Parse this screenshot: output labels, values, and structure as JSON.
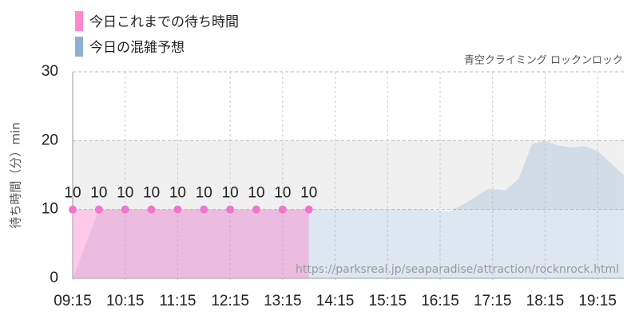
{
  "chart_data": {
    "type": "area",
    "subtitle": "青空クライミング ロックンロック",
    "y_label": "待ち時間（分）min",
    "watermark": "https://parksreal.jp/seaparadise/attraction/rocknrock.html",
    "xlim": [
      555,
      1185
    ],
    "xticks": [
      {
        "value": 555,
        "label": "09:15"
      },
      {
        "value": 615,
        "label": "10:15"
      },
      {
        "value": 675,
        "label": "11:15"
      },
      {
        "value": 735,
        "label": "12:15"
      },
      {
        "value": 795,
        "label": "13:15"
      },
      {
        "value": 855,
        "label": "14:15"
      },
      {
        "value": 915,
        "label": "15:15"
      },
      {
        "value": 975,
        "label": "16:15"
      },
      {
        "value": 1035,
        "label": "17:15"
      },
      {
        "value": 1095,
        "label": "18:15"
      },
      {
        "value": 1155,
        "label": "19:15"
      }
    ],
    "ylim": [
      0,
      30
    ],
    "yticks": [
      0,
      10,
      20,
      30
    ],
    "shaded_band": [
      10,
      20
    ],
    "grid": true,
    "series": [
      {
        "name": "今日これまでの待ち時間",
        "color": "#ff88cc",
        "labels": true,
        "x": [
          555,
          585,
          615,
          645,
          675,
          705,
          735,
          765,
          795,
          825
        ],
        "values": [
          10,
          10,
          10,
          10,
          10,
          10,
          10,
          10,
          10,
          10
        ]
      },
      {
        "name": "今日の混雑予想",
        "color": "#8fb0d0",
        "labels": false,
        "x": [
          555,
          585,
          615,
          660,
          720,
          780,
          840,
          900,
          960,
          985,
          1005,
          1030,
          1050,
          1065,
          1080,
          1095,
          1110,
          1125,
          1140,
          1155,
          1185
        ],
        "values": [
          0,
          10,
          10,
          10,
          10,
          10,
          10,
          10,
          10,
          9.7,
          11,
          13,
          12.8,
          14.5,
          19.5,
          20,
          19.3,
          19,
          19.2,
          18.5,
          15
        ]
      }
    ]
  }
}
